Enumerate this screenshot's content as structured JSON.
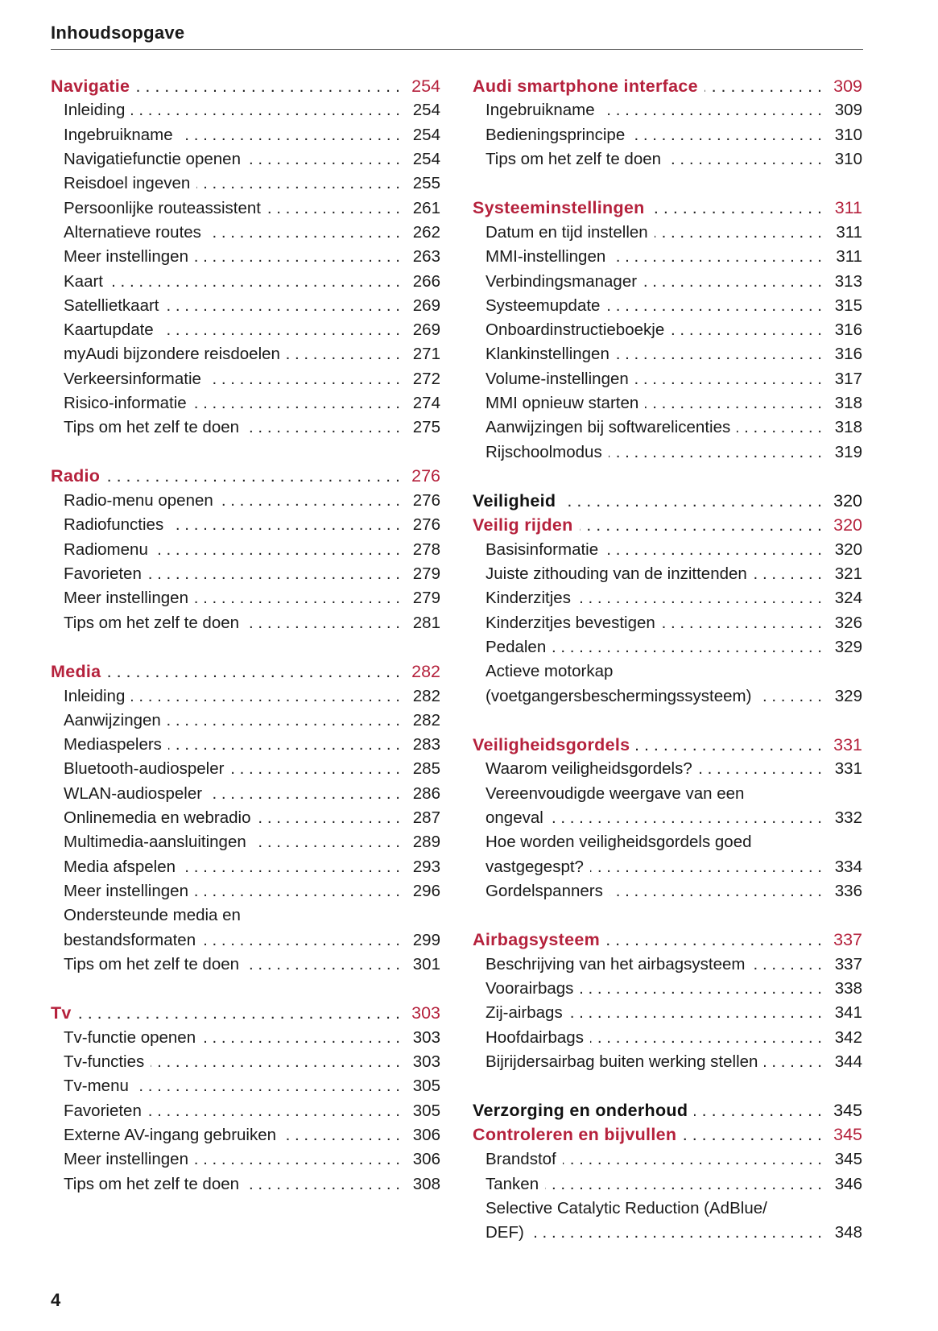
{
  "header": {
    "title": "Inhoudsopgave"
  },
  "footer": {
    "page_number": "4"
  },
  "colors": {
    "chapter": "#b5213c",
    "text": "#1a1a1a"
  },
  "columns": {
    "left": [
      {
        "type": "chapter",
        "text": "Navigatie",
        "page": "254"
      },
      {
        "type": "item",
        "text": "Inleiding",
        "page": "254"
      },
      {
        "type": "item",
        "text": "Ingebruikname",
        "page": "254"
      },
      {
        "type": "item",
        "text": "Navigatiefunctie openen",
        "page": "254"
      },
      {
        "type": "item",
        "text": "Reisdoel ingeven",
        "page": "255"
      },
      {
        "type": "item",
        "text": "Persoonlijke routeassistent",
        "page": "261"
      },
      {
        "type": "item",
        "text": "Alternatieve routes",
        "page": "262"
      },
      {
        "type": "item",
        "text": "Meer instellingen",
        "page": "263"
      },
      {
        "type": "item",
        "text": "Kaart",
        "page": "266"
      },
      {
        "type": "item",
        "text": "Satellietkaart",
        "page": "269"
      },
      {
        "type": "item",
        "text": "Kaartupdate",
        "page": "269"
      },
      {
        "type": "item",
        "text": "myAudi bijzondere reisdoelen",
        "page": "271"
      },
      {
        "type": "item",
        "text": "Verkeersinformatie",
        "page": "272"
      },
      {
        "type": "item",
        "text": "Risico-informatie",
        "page": "274"
      },
      {
        "type": "item",
        "text": "Tips om het zelf te doen",
        "page": "275"
      },
      {
        "type": "gap"
      },
      {
        "type": "chapter",
        "text": "Radio",
        "page": "276"
      },
      {
        "type": "item",
        "text": "Radio-menu openen",
        "page": "276"
      },
      {
        "type": "item",
        "text": "Radiofuncties",
        "page": "276"
      },
      {
        "type": "item",
        "text": "Radiomenu",
        "page": "278"
      },
      {
        "type": "item",
        "text": "Favorieten",
        "page": "279"
      },
      {
        "type": "item",
        "text": "Meer instellingen",
        "page": "279"
      },
      {
        "type": "item",
        "text": "Tips om het zelf te doen",
        "page": "281"
      },
      {
        "type": "gap"
      },
      {
        "type": "chapter",
        "text": "Media",
        "page": "282"
      },
      {
        "type": "item",
        "text": "Inleiding",
        "page": "282"
      },
      {
        "type": "item",
        "text": "Aanwijzingen",
        "page": "282"
      },
      {
        "type": "item",
        "text": "Mediaspelers",
        "page": "283"
      },
      {
        "type": "item",
        "text": "Bluetooth-audiospeler",
        "page": "285"
      },
      {
        "type": "item",
        "text": "WLAN-audiospeler",
        "page": "286"
      },
      {
        "type": "item",
        "text": "Onlinemedia en webradio",
        "page": "287"
      },
      {
        "type": "item",
        "text": "Multimedia-aansluitingen",
        "page": "289"
      },
      {
        "type": "item",
        "text": "Media afspelen",
        "page": "293"
      },
      {
        "type": "item",
        "text": "Meer instellingen",
        "page": "296"
      },
      {
        "type": "item",
        "text": "Ondersteunde media en"
      },
      {
        "type": "item",
        "text": "bestandsformaten",
        "page": "299"
      },
      {
        "type": "item",
        "text": "Tips om het zelf te doen",
        "page": "301"
      },
      {
        "type": "gap"
      },
      {
        "type": "chapter",
        "text": "Tv",
        "page": "303"
      },
      {
        "type": "item",
        "text": "Tv-functie openen",
        "page": "303"
      },
      {
        "type": "item",
        "text": "Tv-functies",
        "page": "303"
      },
      {
        "type": "item",
        "text": "Tv-menu",
        "page": "305"
      },
      {
        "type": "item",
        "text": "Favorieten",
        "page": "305"
      },
      {
        "type": "item",
        "text": "Externe AV-ingang gebruiken",
        "page": "306"
      },
      {
        "type": "item",
        "text": "Meer instellingen",
        "page": "306"
      },
      {
        "type": "item",
        "text": "Tips om het zelf te doen",
        "page": "308"
      }
    ],
    "right": [
      {
        "type": "chapter",
        "text": "Audi smartphone interface",
        "page": "309"
      },
      {
        "type": "item",
        "text": "Ingebruikname",
        "page": "309"
      },
      {
        "type": "item",
        "text": "Bedieningsprincipe",
        "page": "310"
      },
      {
        "type": "item",
        "text": "Tips om het zelf te doen",
        "page": "310"
      },
      {
        "type": "gap"
      },
      {
        "type": "chapter",
        "text": "Systeeminstellingen",
        "page": "311"
      },
      {
        "type": "item",
        "text": "Datum en tijd instellen",
        "page": "311"
      },
      {
        "type": "item",
        "text": "MMI-instellingen",
        "page": "311"
      },
      {
        "type": "item",
        "text": "Verbindingsmanager",
        "page": "313"
      },
      {
        "type": "item",
        "text": "Systeemupdate",
        "page": "315"
      },
      {
        "type": "item",
        "text": "Onboardinstructieboekje",
        "page": "316"
      },
      {
        "type": "item",
        "text": "Klankinstellingen",
        "page": "316"
      },
      {
        "type": "item",
        "text": "Volume-instellingen",
        "page": "317"
      },
      {
        "type": "item",
        "text": "MMI opnieuw starten",
        "page": "318"
      },
      {
        "type": "item",
        "text": "Aanwijzingen bij softwarelicenties",
        "page": "318"
      },
      {
        "type": "item",
        "text": "Rijschoolmodus",
        "page": "319"
      },
      {
        "type": "gap"
      },
      {
        "type": "part",
        "text": "Veiligheid",
        "page": "320"
      },
      {
        "type": "chapter",
        "text": "Veilig rijden",
        "page": "320"
      },
      {
        "type": "item",
        "text": "Basisinformatie",
        "page": "320"
      },
      {
        "type": "item",
        "text": "Juiste zithouding van de inzittenden",
        "page": "321"
      },
      {
        "type": "item",
        "text": "Kinderzitjes",
        "page": "324"
      },
      {
        "type": "item",
        "text": "Kinderzitjes bevestigen",
        "page": "326"
      },
      {
        "type": "item",
        "text": "Pedalen",
        "page": "329"
      },
      {
        "type": "item",
        "text": "Actieve motorkap"
      },
      {
        "type": "item",
        "text": "(voetgangersbeschermingssysteem)",
        "page": "329"
      },
      {
        "type": "gap"
      },
      {
        "type": "chapter",
        "text": "Veiligheidsgordels",
        "page": "331"
      },
      {
        "type": "item",
        "text": "Waarom veiligheidsgordels?",
        "page": "331"
      },
      {
        "type": "item",
        "text": "Vereenvoudigde weergave van een"
      },
      {
        "type": "item",
        "text": "ongeval",
        "page": "332"
      },
      {
        "type": "item",
        "text": "Hoe worden veiligheidsgordels goed"
      },
      {
        "type": "item",
        "text": "vastgegespt?",
        "page": "334"
      },
      {
        "type": "item",
        "text": "Gordelspanners",
        "page": "336"
      },
      {
        "type": "gap"
      },
      {
        "type": "chapter",
        "text": "Airbagsysteem",
        "page": "337"
      },
      {
        "type": "item",
        "text": "Beschrijving van het airbagsysteem",
        "page": "337"
      },
      {
        "type": "item",
        "text": "Voorairbags",
        "page": "338"
      },
      {
        "type": "item",
        "text": "Zij-airbags",
        "page": "341"
      },
      {
        "type": "item",
        "text": "Hoofdairbags",
        "page": "342"
      },
      {
        "type": "item",
        "text": "Bijrijdersairbag buiten werking stellen",
        "page": "344"
      },
      {
        "type": "gap"
      },
      {
        "type": "part",
        "text": "Verzorging en onderhoud",
        "page": "345"
      },
      {
        "type": "chapter",
        "text": "Controleren en bijvullen",
        "page": "345"
      },
      {
        "type": "item",
        "text": "Brandstof",
        "page": "345"
      },
      {
        "type": "item",
        "text": "Tanken",
        "page": "346"
      },
      {
        "type": "item",
        "text": "Selective Catalytic Reduction (AdBlue/"
      },
      {
        "type": "item",
        "text": "DEF)",
        "page": "348"
      }
    ]
  }
}
